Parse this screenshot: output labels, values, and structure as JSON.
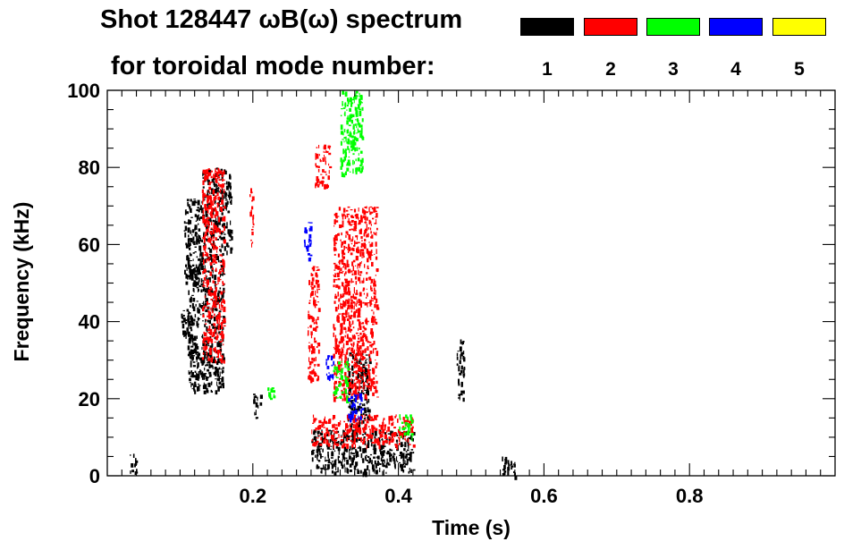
{
  "title_line1": "Shot 128447 ωB(ω) spectrum",
  "title_line2": "for toroidal mode number:",
  "legend": [
    {
      "label": "1",
      "color": "#000000"
    },
    {
      "label": "2",
      "color": "#ff0000"
    },
    {
      "label": "3",
      "color": "#00ff00"
    },
    {
      "label": "4",
      "color": "#0000ff"
    },
    {
      "label": "5",
      "color": "#ffff00"
    }
  ],
  "chart_data": {
    "type": "heatmap",
    "title": "Shot 128447 ωB(ω) spectrum",
    "xlabel": "Time (s)",
    "ylabel": "Frequency (kHz)",
    "xlim": [
      0.0,
      1.0
    ],
    "ylim": [
      0,
      100
    ],
    "xticks": [
      0.2,
      0.4,
      0.6,
      0.8
    ],
    "xtick_labels": [
      "0.2",
      "0.4",
      "0.6",
      "0.8"
    ],
    "yticks": [
      0,
      20,
      40,
      60,
      80,
      100
    ],
    "ytick_labels": [
      "0",
      "20",
      "40",
      "60",
      "80",
      "100"
    ],
    "grid": false,
    "legend_position": "top-right",
    "series": [
      {
        "name": "1",
        "color": "#000000",
        "regions": [
          {
            "t": [
              0.1,
              0.115
            ],
            "f": [
              36,
              44
            ]
          },
          {
            "t": [
              0.105,
              0.13
            ],
            "f": [
              50,
              72
            ]
          },
          {
            "t": [
              0.13,
              0.17
            ],
            "f": [
              58,
              80
            ]
          },
          {
            "t": [
              0.11,
              0.16
            ],
            "f": [
              22,
              58
            ]
          },
          {
            "t": [
              0.28,
              0.42
            ],
            "f": [
              1,
              12
            ]
          },
          {
            "t": [
              0.33,
              0.36
            ],
            "f": [
              12,
              32
            ]
          },
          {
            "t": [
              0.2,
              0.21
            ],
            "f": [
              15,
              22
            ]
          },
          {
            "t": [
              0.48,
              0.49
            ],
            "f": [
              20,
              36
            ]
          },
          {
            "t": [
              0.03,
              0.04
            ],
            "f": [
              1,
              6
            ]
          },
          {
            "t": [
              0.54,
              0.56
            ],
            "f": [
              0,
              5
            ]
          }
        ]
      },
      {
        "name": "2",
        "color": "#ff0000",
        "regions": [
          {
            "t": [
              0.285,
              0.305
            ],
            "f": [
              75,
              86
            ]
          },
          {
            "t": [
              0.275,
              0.29
            ],
            "f": [
              25,
              55
            ]
          },
          {
            "t": [
              0.28,
              0.42
            ],
            "f": [
              8,
              16
            ]
          },
          {
            "t": [
              0.13,
              0.16
            ],
            "f": [
              30,
              80
            ]
          },
          {
            "t": [
              0.195,
              0.2
            ],
            "f": [
              60,
              75
            ]
          },
          {
            "t": [
              0.31,
              0.37
            ],
            "f": [
              20,
              70
            ]
          }
        ]
      },
      {
        "name": "3",
        "color": "#00ff00",
        "regions": [
          {
            "t": [
              0.32,
              0.35
            ],
            "f": [
              78,
              100
            ]
          },
          {
            "t": [
              0.31,
              0.33
            ],
            "f": [
              20,
              30
            ]
          },
          {
            "t": [
              0.22,
              0.23
            ],
            "f": [
              20,
              23
            ]
          },
          {
            "t": [
              0.4,
              0.42
            ],
            "f": [
              10,
              16
            ]
          }
        ]
      },
      {
        "name": "4",
        "color": "#0000ff",
        "regions": [
          {
            "t": [
              0.27,
              0.28
            ],
            "f": [
              56,
              66
            ]
          },
          {
            "t": [
              0.3,
              0.31
            ],
            "f": [
              25,
              32
            ]
          },
          {
            "t": [
              0.33,
              0.35
            ],
            "f": [
              15,
              22
            ]
          }
        ]
      }
    ]
  }
}
